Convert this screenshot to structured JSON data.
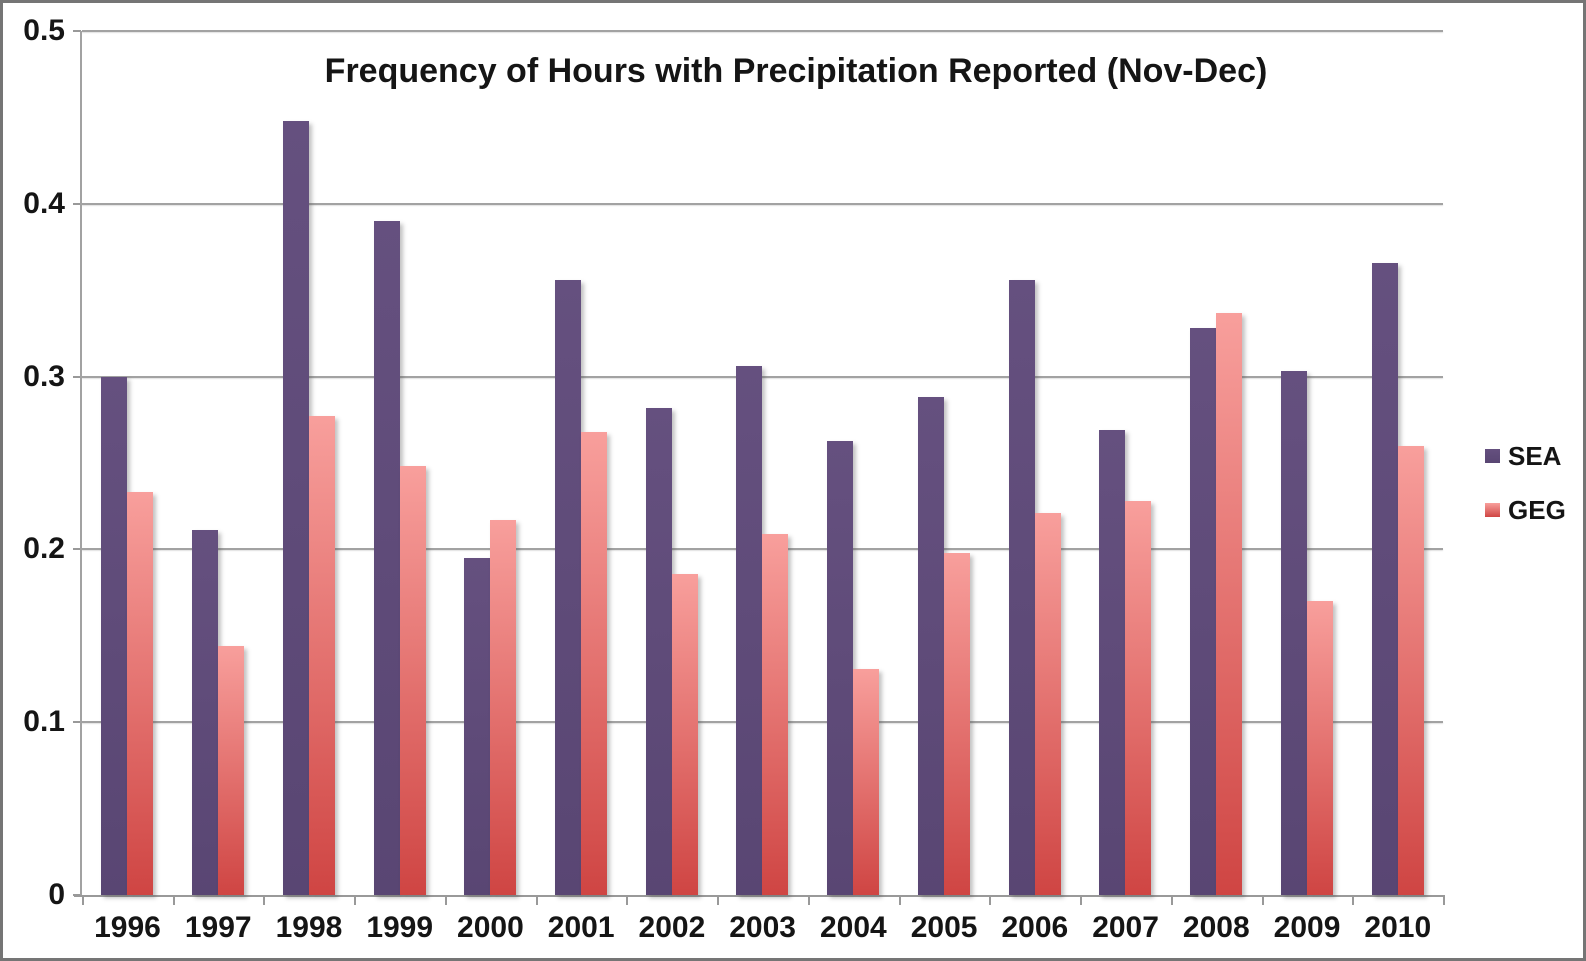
{
  "chart_data": {
    "type": "bar",
    "title": "Frequency of Hours with Precipitation Reported (Nov-Dec)",
    "categories": [
      "1996",
      "1997",
      "1998",
      "1999",
      "2000",
      "2001",
      "2002",
      "2003",
      "2004",
      "2005",
      "2006",
      "2007",
      "2008",
      "2009",
      "2010"
    ],
    "series": [
      {
        "name": "SEA",
        "fill_top": "#65507f",
        "fill_bottom": "#594673",
        "values": [
          0.3,
          0.211,
          0.448,
          0.39,
          0.195,
          0.356,
          0.282,
          0.306,
          0.263,
          0.288,
          0.356,
          0.269,
          0.328,
          0.303,
          0.366
        ]
      },
      {
        "name": "GEG",
        "fill_top": "#f89f9c",
        "fill_bottom": "#cf4543",
        "values": [
          0.233,
          0.144,
          0.277,
          0.248,
          0.217,
          0.268,
          0.186,
          0.209,
          0.131,
          0.198,
          0.221,
          0.228,
          0.337,
          0.17,
          0.26
        ]
      }
    ],
    "ylim": [
      0,
      0.5
    ],
    "yticks": [
      "0.5",
      "0.4",
      "0.3",
      "0.2",
      "0.1",
      "0"
    ],
    "grid": true,
    "legend_position": "right",
    "grid_color": "#a2a2a2",
    "axis_color": "#999999",
    "frame_color": "#757575",
    "text_color": "#151515"
  }
}
